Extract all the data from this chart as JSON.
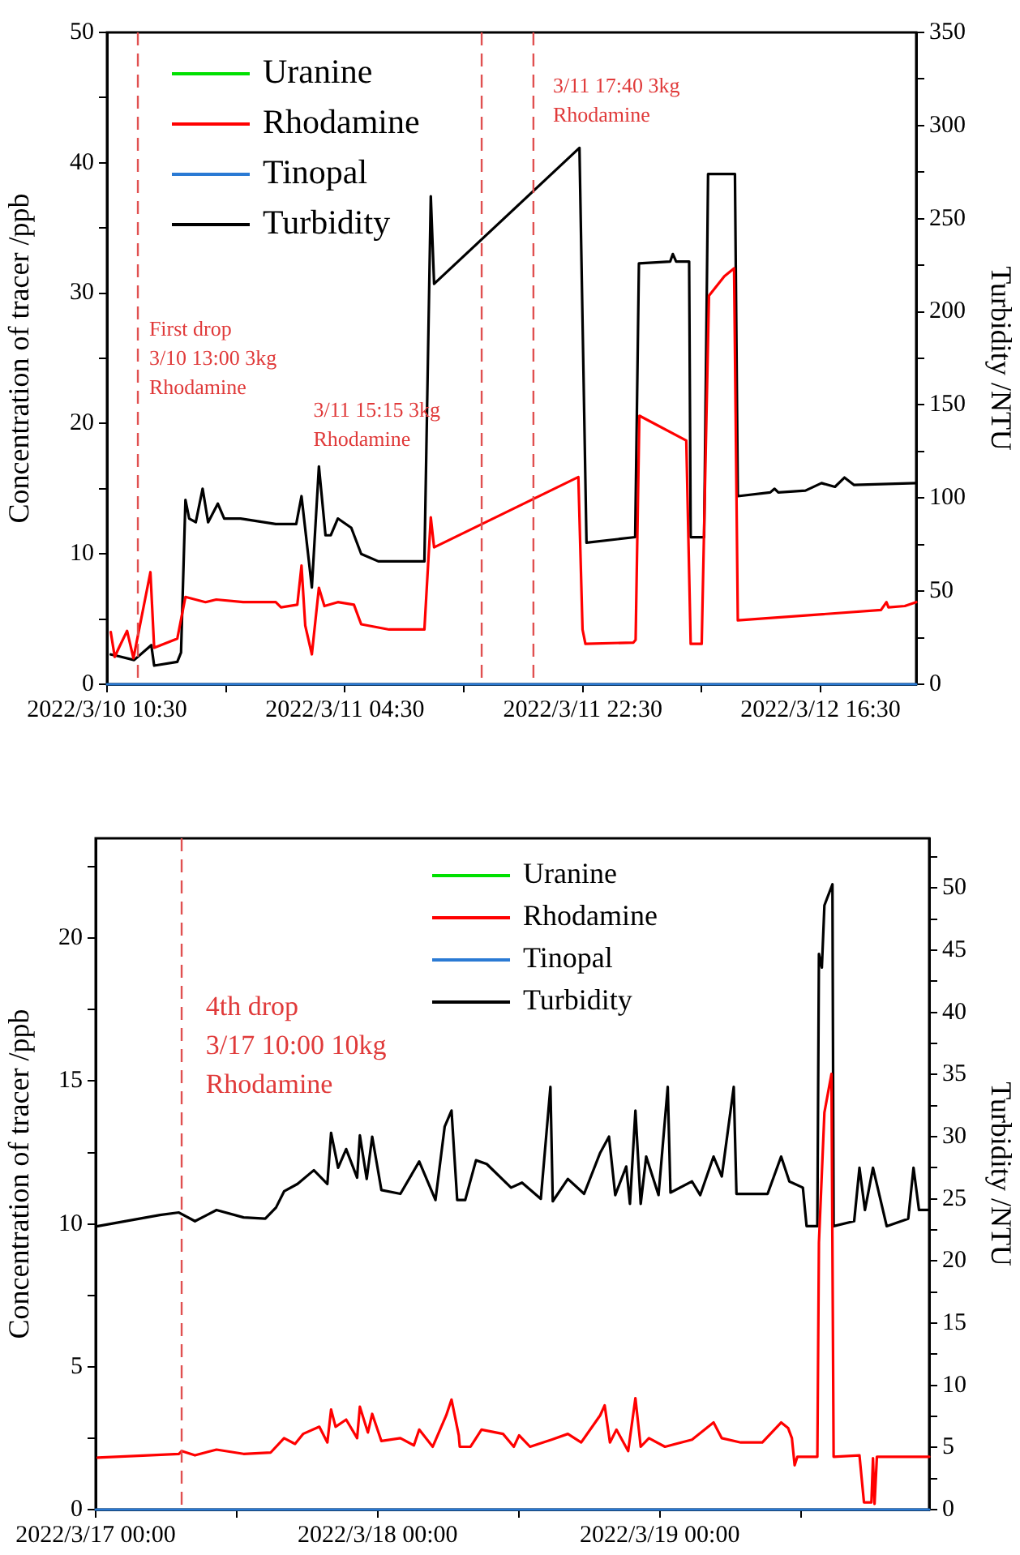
{
  "chart_data": [
    {
      "type": "line",
      "ylabel": "Concentration of tracer /ppb",
      "y2label": "Turbidity /NTU",
      "legend": "top left",
      "grid": false,
      "marker": "none",
      "xlim": [
        "2022-03-10T10:30",
        "2022-03-12T23:44"
      ],
      "xticks": [
        {
          "value": "2022-03-10T10:30",
          "label": "2022/3/10 10:30"
        },
        {
          "value": "2022-03-10T19:30",
          "label": null
        },
        {
          "value": "2022-03-11T04:30",
          "label": "2022/3/11 04:30"
        },
        {
          "value": "2022-03-11T13:30",
          "label": null
        },
        {
          "value": "2022-03-11T22:30",
          "label": "2022/3/11 22:30"
        },
        {
          "value": "2022-03-12T07:30",
          "label": null
        },
        {
          "value": "2022-03-12T16:30",
          "label": "2022/3/12 16:30"
        }
      ],
      "ylim": [
        0,
        50
      ],
      "yticks": [
        0,
        {
          "value": 5,
          "label": null
        },
        10,
        {
          "value": 15,
          "label": null
        },
        20,
        {
          "value": 25,
          "label": null
        },
        30,
        {
          "value": 35,
          "label": null
        },
        40,
        {
          "value": 45,
          "label": null
        },
        50
      ],
      "y2lim": [
        0,
        350
      ],
      "y2ticks": [
        0,
        {
          "value": 25,
          "label": null
        },
        50,
        {
          "value": 75,
          "label": null
        },
        100,
        {
          "value": 125,
          "label": null
        },
        150,
        {
          "value": 175,
          "label": null
        },
        200,
        {
          "value": 225,
          "label": null
        },
        250,
        {
          "value": 275,
          "label": null
        },
        300,
        {
          "value": 325,
          "label": null
        },
        350
      ],
      "ref_lines": [
        {
          "axis": "x",
          "value": "2022-03-10T12:50",
          "color": "#e05050",
          "line_style": "dashed"
        },
        {
          "axis": "x",
          "value": "2022-03-11T14:51",
          "color": "#e05050",
          "line_style": "dashed"
        },
        {
          "axis": "x",
          "value": "2022-03-11T18:46",
          "color": "#e05050",
          "line_style": "dashed"
        }
      ],
      "annotations": [
        "First drop\n3/10 13:00 3kg\nRhodamine",
        "3/11 15:15 3kg\nRhodamine",
        "3/11 17:40 3kg\nRhodamine"
      ],
      "series": [
        {
          "name": "Uranine",
          "color": "#00e000"
        },
        {
          "name": "Rhodamine",
          "color": "#ff0000",
          "x": [
            "2022-03-10T10:47",
            "2022-03-10T11:05",
            "2022-03-10T11:24",
            "2022-03-10T12:01",
            "2022-03-10T12:30",
            "2022-03-10T13:47",
            "2022-03-10T14:04",
            "2022-03-10T15:49",
            "2022-03-10T16:26",
            "2022-03-10T17:57",
            "2022-03-10T18:46",
            "2022-03-10T20:48",
            "2022-03-10T23:16",
            "2022-03-10T23:40",
            "2022-03-11T00:54",
            "2022-03-11T01:13",
            "2022-03-11T01:30",
            "2022-03-11T02:00",
            "2022-03-11T02:32",
            "2022-03-11T02:57",
            "2022-03-11T03:58",
            "2022-03-11T05:11",
            "2022-03-11T05:44",
            "2022-03-11T07:51",
            "2022-03-11T10:31",
            "2022-03-11T11:00",
            "2022-03-11T11:15",
            "2022-03-11T22:10",
            "2022-03-11T22:29",
            "2022-03-11T22:42",
            "2022-03-12T02:20",
            "2022-03-12T02:30",
            "2022-03-12T02:47",
            "2022-03-12T06:20",
            "2022-03-12T06:40",
            "2022-03-12T07:30",
            "2022-03-12T08:03",
            "2022-03-12T09:13",
            "2022-03-12T09:57",
            "2022-03-12T10:14",
            "2022-03-12T21:04",
            "2022-03-12T21:29",
            "2022-03-12T21:38",
            "2022-03-12T22:52",
            "2022-03-12T23:44"
          ],
          "values": [
            4.0,
            2.1,
            2.8,
            4.1,
            2.0,
            8.6,
            2.8,
            3.5,
            6.7,
            6.3,
            6.5,
            6.3,
            6.3,
            5.9,
            6.1,
            9.1,
            4.5,
            2.3,
            7.4,
            6.0,
            6.3,
            6.1,
            4.6,
            4.2,
            4.2,
            12.8,
            10.5,
            15.9,
            4.2,
            3.1,
            3.2,
            3.4,
            20.6,
            18.7,
            3.1,
            3.1,
            29.8,
            31.3,
            31.9,
            4.9,
            5.7,
            6.3,
            5.9,
            6.0,
            6.3
          ]
        },
        {
          "name": "Tinopal",
          "color": "#2a7ad4",
          "x": [
            "2022-03-10T10:30",
            "2022-03-12T23:44"
          ],
          "values": [
            0,
            0
          ]
        },
        {
          "name": "Turbidity",
          "color": "#000000",
          "axis": "y2",
          "x": [
            "2022-03-10T10:47",
            "2022-03-10T11:24",
            "2022-03-10T12:33",
            "2022-03-10T13:51",
            "2022-03-10T14:04",
            "2022-03-10T15:49",
            "2022-03-10T16:06",
            "2022-03-10T16:26",
            "2022-03-10T16:43",
            "2022-03-10T17:13",
            "2022-03-10T17:44",
            "2022-03-10T18:09",
            "2022-03-10T18:53",
            "2022-03-10T19:22",
            "2022-03-10T20:36",
            "2022-03-10T23:16",
            "2022-03-11T00:49",
            "2022-03-11T01:13",
            "2022-03-11T02:00",
            "2022-03-11T02:32",
            "2022-03-11T03:02",
            "2022-03-11T03:26",
            "2022-03-11T03:58",
            "2022-03-11T04:59",
            "2022-03-11T05:44",
            "2022-03-11T07:02",
            "2022-03-11T10:31",
            "2022-03-11T11:00",
            "2022-03-11T11:15",
            "2022-03-11T22:15",
            "2022-03-11T22:47",
            "2022-03-12T02:28",
            "2022-03-12T02:45",
            "2022-03-12T05:07",
            "2022-03-12T05:19",
            "2022-03-12T05:34",
            "2022-03-12T06:33",
            "2022-03-12T06:40",
            "2022-03-12T07:41",
            "2022-03-12T07:59",
            "2022-03-12T10:01",
            "2022-03-12T10:14",
            "2022-03-12T12:41",
            "2022-03-12T13:01",
            "2022-03-12T13:18",
            "2022-03-12T15:21",
            "2022-03-12T16:34",
            "2022-03-12T17:35",
            "2022-03-12T18:18",
            "2022-03-12T19:02",
            "2022-03-12T23:44"
          ],
          "values": [
            16,
            15,
            13,
            21,
            10,
            12,
            17,
            99,
            89,
            87,
            105,
            87,
            97,
            89,
            89,
            86,
            86,
            101,
            52,
            117,
            80,
            80,
            89,
            84,
            70,
            66,
            66,
            262,
            215,
            288,
            76,
            79,
            226,
            227,
            231,
            227,
            227,
            79,
            79,
            274,
            274,
            101,
            103,
            105,
            103,
            104,
            108,
            106,
            111,
            107,
            108
          ]
        }
      ]
    },
    {
      "type": "line",
      "ylabel": "Concentration of tracer /ppb",
      "y2label": "Turbidity /NTU",
      "legend": "top",
      "grid": false,
      "marker": "none",
      "xlim": [
        "2022-03-17T00:00",
        "2022-03-19T22:56"
      ],
      "xticks": [
        {
          "value": "2022-03-17T00:00",
          "label": "2022/3/17 00:00"
        },
        {
          "value": "2022-03-17T12:00",
          "label": null
        },
        {
          "value": "2022-03-18T00:00",
          "label": "2022/3/18 00:00"
        },
        {
          "value": "2022-03-18T12:00",
          "label": null
        },
        {
          "value": "2022-03-19T00:00",
          "label": "2022/3/19 00:00"
        },
        {
          "value": "2022-03-19T12:00",
          "label": null
        }
      ],
      "ylim": [
        0,
        23.5
      ],
      "yticks": [
        0,
        {
          "value": 2.5,
          "label": null
        },
        5,
        {
          "value": 7.5,
          "label": null
        },
        10,
        {
          "value": 12.5,
          "label": null
        },
        15,
        {
          "value": 17.5,
          "label": null
        },
        20,
        {
          "value": 22.5,
          "label": null
        }
      ],
      "y2lim": [
        0,
        54
      ],
      "y2ticks": [
        0,
        {
          "value": 2.5,
          "label": null
        },
        5,
        {
          "value": 7.5,
          "label": null
        },
        10,
        {
          "value": 12.5,
          "label": null
        },
        15,
        {
          "value": 17.5,
          "label": null
        },
        20,
        {
          "value": 22.5,
          "label": null
        },
        25,
        {
          "value": 27.5,
          "label": null
        },
        30,
        {
          "value": 32.5,
          "label": null
        },
        35,
        {
          "value": 37.5,
          "label": null
        },
        40,
        {
          "value": 42.5,
          "label": null
        },
        45,
        {
          "value": 47.5,
          "label": null
        },
        50,
        {
          "value": 52.5,
          "label": null
        }
      ],
      "ref_lines": [
        {
          "axis": "x",
          "value": "2022-03-17T07:19",
          "color": "#e05050",
          "line_style": "dashed"
        }
      ],
      "annotations": [
        "4th drop\n3/17 10:00 10kg\nRhodamine"
      ],
      "series": [
        {
          "name": "Uranine",
          "color": "#00e000"
        },
        {
          "name": "Rhodamine",
          "color": "#ff0000",
          "x": [
            "2022-03-17T00:11",
            "2022-03-17T07:05",
            "2022-03-17T07:19",
            "2022-03-17T08:27",
            "2022-03-17T10:17",
            "2022-03-17T12:35",
            "2022-03-17T14:54",
            "2022-03-17T16:02",
            "2022-03-17T16:58",
            "2022-03-17T17:39",
            "2022-03-17T19:02",
            "2022-03-17T19:43",
            "2022-03-17T20:02",
            "2022-03-17T20:25",
            "2022-03-17T21:19",
            "2022-03-17T22:15",
            "2022-03-17T22:29",
            "2022-03-17T23:10",
            "2022-03-17T23:32",
            "2022-03-18T00:19",
            "2022-03-18T01:56",
            "2022-03-18T03:05",
            "2022-03-18T03:32",
            "2022-03-18T04:41",
            "2022-03-18T05:50",
            "2022-03-18T06:17",
            "2022-03-18T06:54",
            "2022-03-18T06:59",
            "2022-03-18T07:54",
            "2022-03-18T08:50",
            "2022-03-18T10:40",
            "2022-03-18T11:35",
            "2022-03-18T12:02",
            "2022-03-18T12:58",
            "2022-03-18T14:48",
            "2022-03-18T16:11",
            "2022-03-18T17:19",
            "2022-03-18T18:56",
            "2022-03-18T19:19",
            "2022-03-18T19:46",
            "2022-03-18T20:19",
            "2022-03-18T21:19",
            "2022-03-18T21:56",
            "2022-03-18T22:23",
            "2022-03-18T23:05",
            "2022-03-19T00:27",
            "2022-03-19T02:45",
            "2022-03-19T04:35",
            "2022-03-19T05:17",
            "2022-03-19T06:54",
            "2022-03-19T08:44",
            "2022-03-19T10:20",
            "2022-03-19T10:56",
            "2022-03-19T11:15",
            "2022-03-19T11:29",
            "2022-03-19T11:43",
            "2022-03-19T13:25",
            "2022-03-19T13:33",
            "2022-03-19T14:01",
            "2022-03-19T14:37",
            "2022-03-19T14:48",
            "2022-03-19T17:00",
            "2022-03-19T17:23",
            "2022-03-19T18:01",
            "2022-03-19T18:09",
            "2022-03-19T18:17",
            "2022-03-19T18:29",
            "2022-03-19T22:56"
          ],
          "values": [
            1.82,
            1.95,
            2.05,
            1.9,
            2.1,
            1.95,
            2.0,
            2.5,
            2.3,
            2.65,
            2.9,
            2.35,
            3.5,
            2.9,
            3.15,
            2.5,
            3.6,
            2.7,
            3.35,
            2.4,
            2.5,
            2.25,
            2.8,
            2.2,
            3.3,
            3.85,
            2.6,
            2.2,
            2.2,
            2.8,
            2.65,
            2.2,
            2.6,
            2.2,
            2.45,
            2.65,
            2.35,
            3.3,
            3.65,
            2.35,
            2.8,
            2.05,
            3.9,
            2.2,
            2.5,
            2.2,
            2.45,
            3.05,
            2.5,
            2.35,
            2.35,
            3.05,
            2.85,
            2.5,
            1.55,
            1.85,
            1.85,
            9.35,
            13.9,
            15.25,
            1.85,
            1.9,
            0.25,
            0.25,
            1.8,
            0.2,
            1.85,
            1.85
          ]
        },
        {
          "name": "Tinopal",
          "color": "#2a7ad4",
          "x": [
            "2022-03-17T00:00",
            "2022-03-19T22:56"
          ],
          "values": [
            0,
            0
          ]
        },
        {
          "name": "Turbidity",
          "color": "#000000",
          "axis": "y2",
          "x": [
            "2022-03-17T00:11",
            "2022-03-17T05:28",
            "2022-03-17T07:05",
            "2022-03-17T08:27",
            "2022-03-17T10:17",
            "2022-03-17T12:35",
            "2022-03-17T14:26",
            "2022-03-17T15:21",
            "2022-03-17T16:02",
            "2022-03-17T17:11",
            "2022-03-17T18:34",
            "2022-03-17T19:43",
            "2022-03-17T20:02",
            "2022-03-17T20:38",
            "2022-03-17T21:19",
            "2022-03-17T22:15",
            "2022-03-17T22:29",
            "2022-03-17T23:04",
            "2022-03-17T23:32",
            "2022-03-18T00:19",
            "2022-03-18T01:56",
            "2022-03-18T03:32",
            "2022-03-18T04:55",
            "2022-03-18T05:42",
            "2022-03-18T06:17",
            "2022-03-18T06:46",
            "2022-03-18T07:27",
            "2022-03-18T08:22",
            "2022-03-18T09:17",
            "2022-03-18T11:21",
            "2022-03-18T12:17",
            "2022-03-18T13:53",
            "2022-03-18T14:42",
            "2022-03-18T14:54",
            "2022-03-18T16:11",
            "2022-03-18T17:34",
            "2022-03-18T18:56",
            "2022-03-18T19:41",
            "2022-03-18T20:13",
            "2022-03-18T21:09",
            "2022-03-18T21:28",
            "2022-03-18T21:56",
            "2022-03-18T22:23",
            "2022-03-18T22:51",
            "2022-03-18T23:54",
            "2022-03-19T00:41",
            "2022-03-19T00:55",
            "2022-03-19T02:45",
            "2022-03-19T03:27",
            "2022-03-19T04:35",
            "2022-03-19T05:17",
            "2022-03-19T06:18",
            "2022-03-19T06:32",
            "2022-03-19T09:11",
            "2022-03-19T10:20",
            "2022-03-19T11:02",
            "2022-03-19T12:11",
            "2022-03-19T12:30",
            "2022-03-19T13:25",
            "2022-03-19T13:33",
            "2022-03-19T13:48",
            "2022-03-19T14:01",
            "2022-03-19T14:42",
            "2022-03-19T14:48",
            "2022-03-19T16:33",
            "2022-03-19T17:00",
            "2022-03-19T17:28",
            "2022-03-19T18:09",
            "2022-03-19T19:19",
            "2022-03-19T21:09",
            "2022-03-19T21:36",
            "2022-03-19T22:04",
            "2022-03-19T22:56"
          ],
          "values": [
            22.8,
            23.7,
            23.9,
            23.2,
            24.1,
            23.5,
            23.4,
            24.3,
            25.6,
            26.2,
            27.3,
            26.2,
            30.3,
            27.5,
            29.0,
            26.7,
            30.1,
            26.6,
            30.0,
            25.7,
            25.4,
            28.0,
            24.9,
            30.8,
            32.1,
            24.9,
            24.9,
            28.1,
            27.8,
            25.9,
            26.3,
            25.0,
            34.0,
            24.8,
            26.6,
            25.4,
            28.7,
            30.0,
            25.3,
            27.6,
            24.6,
            32.1,
            24.6,
            28.4,
            25.3,
            34.0,
            25.5,
            26.4,
            25.3,
            28.4,
            26.8,
            34.0,
            25.4,
            25.4,
            28.4,
            26.4,
            25.9,
            22.8,
            22.8,
            44.7,
            43.6,
            48.6,
            50.3,
            22.8,
            23.2,
            27.5,
            24.1,
            27.5,
            22.8,
            23.4,
            27.5,
            24.1,
            24.1
          ]
        }
      ]
    }
  ]
}
